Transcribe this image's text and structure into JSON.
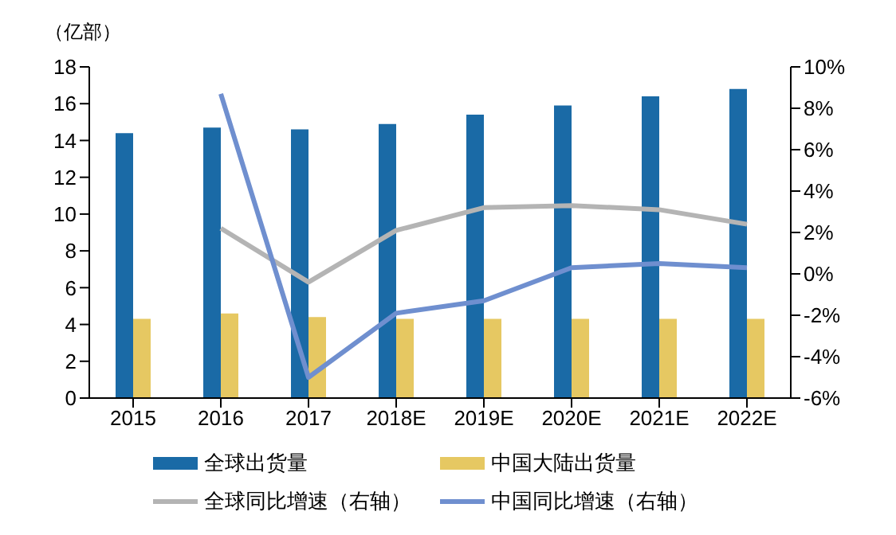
{
  "chart_data": {
    "type": "bar",
    "ylabel": "（亿部）",
    "categories": [
      "2015",
      "2016",
      "2017",
      "2018E",
      "2019E",
      "2020E",
      "2021E",
      "2022E"
    ],
    "series": [
      {
        "name": "全球出货量",
        "color": "#1a6aa6",
        "values": [
          14.4,
          14.7,
          14.6,
          14.9,
          15.4,
          15.9,
          16.4,
          16.8
        ]
      },
      {
        "name": "中国大陆出货量",
        "color": "#e6c862",
        "values": [
          4.3,
          4.6,
          4.4,
          4.3,
          4.3,
          4.3,
          4.3,
          4.3
        ]
      },
      {
        "name": "全球同比增速（右轴）",
        "type": "line",
        "axis": "y2",
        "color": "#b4b4b4",
        "values": [
          null,
          2.2,
          -0.4,
          2.1,
          3.2,
          3.3,
          3.1,
          2.4
        ]
      },
      {
        "name": "中国同比增速（右轴）",
        "type": "line",
        "axis": "y2",
        "color": "#6f8fcf",
        "values": [
          null,
          8.7,
          -5.0,
          -1.9,
          -1.3,
          0.3,
          0.5,
          0.3
        ]
      }
    ],
    "ylim": [
      0,
      18
    ],
    "yticks": [
      0,
      2,
      4,
      6,
      8,
      10,
      12,
      14,
      16,
      18
    ],
    "y2lim": [
      -6,
      10
    ],
    "y2ticks": [
      {
        "value": -6,
        "label": "-6%"
      },
      {
        "value": -4,
        "label": "-4%"
      },
      {
        "value": -2,
        "label": "-2%"
      },
      {
        "value": 0,
        "label": "0%"
      },
      {
        "value": 2,
        "label": "2%"
      },
      {
        "value": 4,
        "label": "4%"
      },
      {
        "value": 6,
        "label": "6%"
      },
      {
        "value": 8,
        "label": "8%"
      },
      {
        "value": 10,
        "label": "10%"
      }
    ],
    "legend": "bottom",
    "marker": "none",
    "grid": false
  }
}
